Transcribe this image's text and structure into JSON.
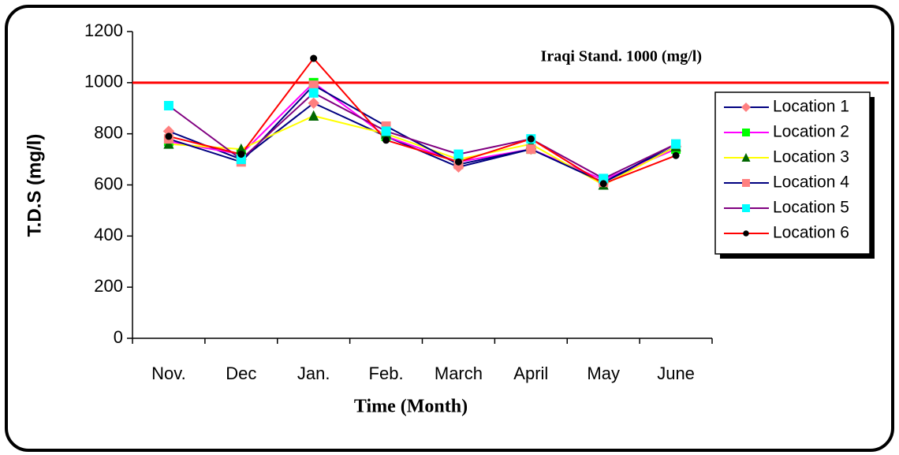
{
  "chart_data": {
    "type": "line",
    "annotation": "Iraqi Stand. 1000 (mg/l)",
    "reference_line": {
      "value": 1000,
      "color": "#ff0000"
    },
    "xlabel": "Time (Month)",
    "ylabel": "T.D.S  (mg/l)",
    "categories": [
      "Nov.",
      "Dec",
      "Jan.",
      "Feb.",
      "March",
      "April",
      "May",
      "June"
    ],
    "series": [
      {
        "name": "Location 1",
        "color": "#000080",
        "marker": "diamond",
        "marker_color": "#ff8080",
        "values": [
          810,
          700,
          920,
          790,
          670,
          740,
          610,
          750
        ]
      },
      {
        "name": "Location 2",
        "color": "#ff00ff",
        "marker": "square",
        "marker_color": "#00ff00",
        "values": [
          770,
          720,
          1000,
          790,
          690,
          740,
          620,
          740
        ]
      },
      {
        "name": "Location 3",
        "color": "#ffff00",
        "marker": "triangle",
        "marker_color": "#006600",
        "values": [
          760,
          740,
          870,
          800,
          700,
          760,
          600,
          750
        ]
      },
      {
        "name": "Location 4",
        "color": "#000080",
        "marker": "square",
        "marker_color": "#ff8080",
        "values": [
          780,
          690,
          990,
          830,
          680,
          740,
          610,
          760
        ]
      },
      {
        "name": "Location 5",
        "color": "#800080",
        "marker": "square",
        "marker_color": "#00ffff",
        "values": [
          910,
          700,
          960,
          810,
          720,
          780,
          625,
          760
        ]
      },
      {
        "name": "Location 6",
        "color": "#ff0000",
        "marker": "circle",
        "marker_color": "#000000",
        "values": [
          790,
          720,
          1095,
          775,
          690,
          780,
          605,
          715
        ]
      }
    ],
    "ylim": [
      0,
      1200
    ],
    "yticks": [
      0,
      200,
      400,
      600,
      800,
      1000,
      1200
    ],
    "legend": "right"
  }
}
